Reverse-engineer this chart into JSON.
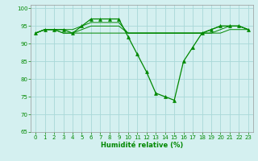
{
  "x": [
    0,
    1,
    2,
    3,
    4,
    5,
    6,
    7,
    8,
    9,
    10,
    11,
    12,
    13,
    14,
    15,
    16,
    17,
    18,
    19,
    20,
    21,
    22,
    23
  ],
  "line1": [
    93,
    94,
    94,
    94,
    93,
    95,
    97,
    97,
    97,
    97,
    92,
    87,
    82,
    76,
    75,
    74,
    85,
    89,
    93,
    94,
    95,
    95,
    95,
    94
  ],
  "line2": [
    93,
    94,
    94,
    93,
    93,
    94,
    95,
    95,
    95,
    95,
    93,
    93,
    93,
    93,
    93,
    93,
    93,
    93,
    93,
    93,
    94,
    95,
    95,
    94
  ],
  "line3": [
    93,
    94,
    94,
    93,
    93,
    93,
    93,
    93,
    93,
    93,
    93,
    93,
    93,
    93,
    93,
    93,
    93,
    93,
    93,
    93,
    93,
    94,
    94,
    94
  ],
  "line4": [
    93,
    94,
    94,
    94,
    94,
    95,
    96,
    96,
    96,
    96,
    93,
    93,
    93,
    93,
    93,
    93,
    93,
    93,
    93,
    94,
    95,
    95,
    95,
    94
  ],
  "background_color": "#d4f0f0",
  "grid_color": "#a8d8d8",
  "line_color": "#008800",
  "xlabel": "Humidité relative (%)",
  "ylim": [
    65,
    101
  ],
  "xlim": [
    -0.5,
    23.5
  ],
  "yticks": [
    65,
    70,
    75,
    80,
    85,
    90,
    95,
    100
  ],
  "xticks": [
    0,
    1,
    2,
    3,
    4,
    5,
    6,
    7,
    8,
    9,
    10,
    11,
    12,
    13,
    14,
    15,
    16,
    17,
    18,
    19,
    20,
    21,
    22,
    23
  ]
}
